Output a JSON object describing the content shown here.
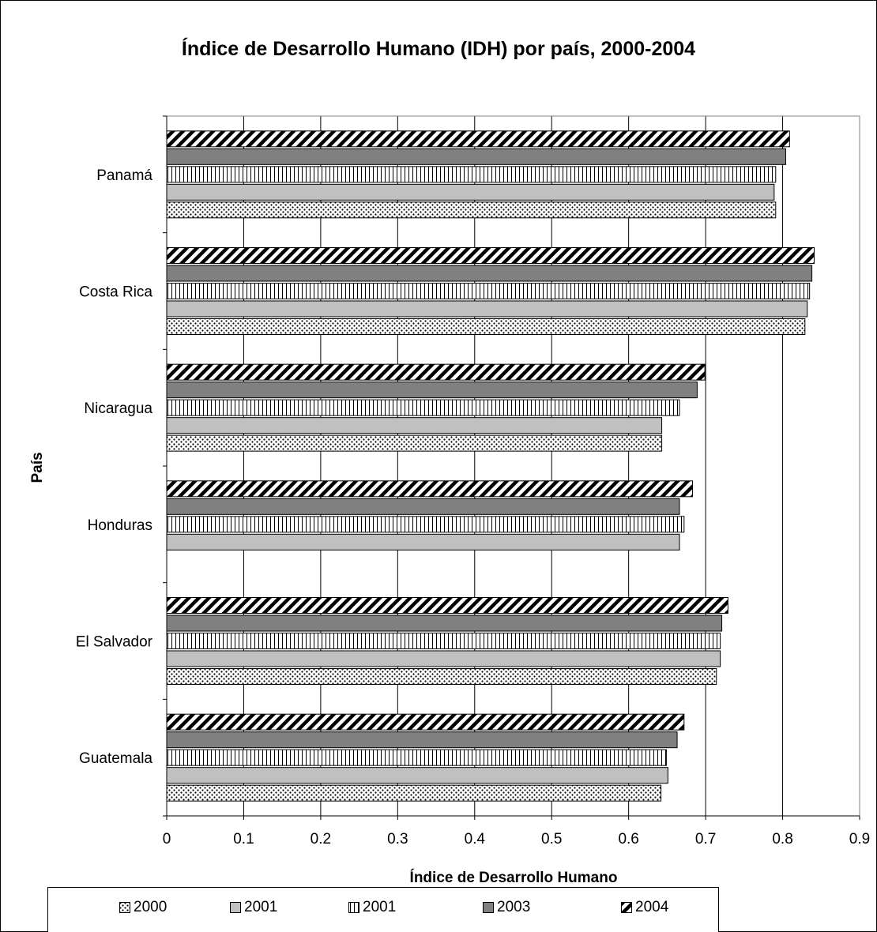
{
  "chart_data": {
    "type": "bar",
    "orientation": "horizontal",
    "title": "Índice de Desarrollo Humano (IDH) por país, 2000-2004",
    "xlabel": "Índice de Desarrollo Humano",
    "ylabel": "País",
    "xlim": [
      0,
      0.9
    ],
    "xticks": [
      "0",
      "0.1",
      "0.2",
      "0.3",
      "0.4",
      "0.5",
      "0.6",
      "0.7",
      "0.8",
      "0.9"
    ],
    "grid": "vertical",
    "legend_position": "bottom",
    "categories": [
      "Panamá",
      "Costa Rica",
      "Nicaragua",
      "Honduras",
      "El Salvador",
      "Guatemala"
    ],
    "series": [
      {
        "name": "2000",
        "pattern": "dots",
        "values": [
          0.791,
          0.829,
          0.643,
          null,
          0.714,
          0.642
        ]
      },
      {
        "name": "2001",
        "pattern": "solid-light",
        "values": [
          0.789,
          0.832,
          0.643,
          0.666,
          0.719,
          0.651
        ]
      },
      {
        "name": "2001",
        "pattern": "vertical-lines",
        "values": [
          0.791,
          0.835,
          0.666,
          0.672,
          0.719,
          0.649
        ]
      },
      {
        "name": "2003",
        "pattern": "solid-dark",
        "values": [
          0.804,
          0.838,
          0.689,
          0.666,
          0.721,
          0.663
        ]
      },
      {
        "name": "2004",
        "pattern": "diagonal-stripes",
        "values": [
          0.809,
          0.841,
          0.699,
          0.683,
          0.729,
          0.672
        ]
      }
    ],
    "colors": {
      "solid_light": "#c0c0c0",
      "solid_dark": "#808080",
      "border": "#000000",
      "grid": "#000000"
    }
  }
}
